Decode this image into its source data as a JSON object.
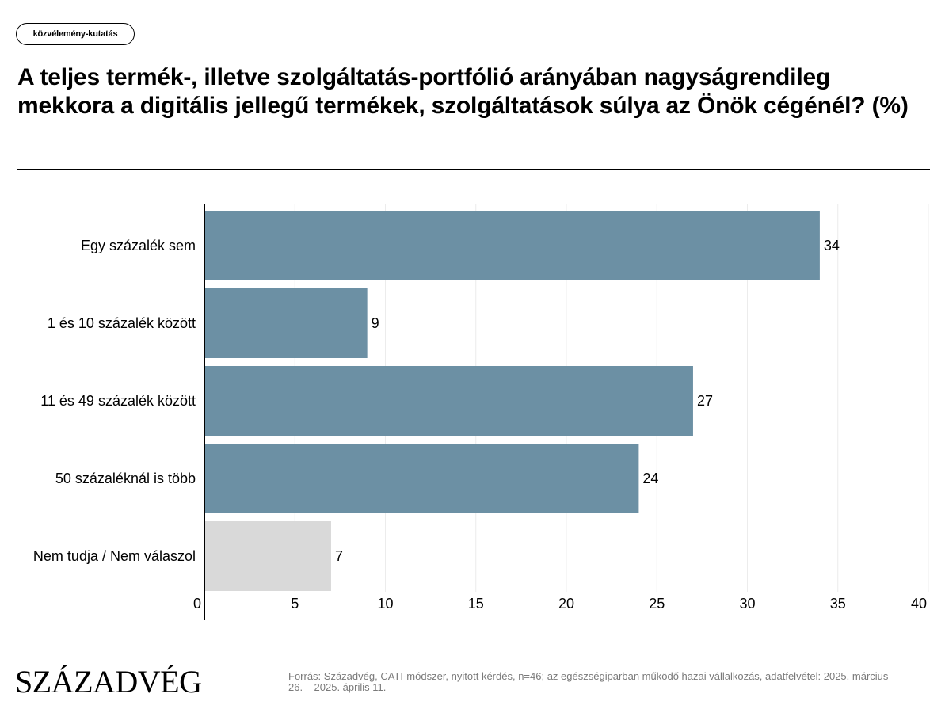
{
  "tag": "közvélemény-kutatás",
  "title": "A teljes termék-, illetve szolgáltatás-portfólió arányában nagyságrendileg mekkora a digitális jellegű termékek, szolgáltatások súlya az Önök cégénél? (%)",
  "logo": "Századvég",
  "source": "Forrás: Századvég, CATI-módszer, nyitott kérdés, n=46; az egészségiparban működő hazai vállalkozás, adatfelvétel: 2025. március 26. – 2025. április 11.",
  "colors": {
    "primary": "#6c90a4",
    "neutral": "#d9d9d9"
  },
  "chart_data": {
    "type": "bar",
    "orientation": "horizontal",
    "categories": [
      "Egy százalék sem",
      "1 és 10 százalék között",
      "11 és 49 százalék között",
      "50 százaléknál is több",
      "Nem tudja / Nem válaszol"
    ],
    "values": [
      34,
      9,
      27,
      24,
      7
    ],
    "bar_colors": [
      "#6c90a4",
      "#6c90a4",
      "#6c90a4",
      "#6c90a4",
      "#d9d9d9"
    ],
    "data_labels": [
      "34",
      "9",
      "27",
      "24",
      "7"
    ],
    "xlim": [
      0,
      40
    ],
    "x_ticks": [
      "0",
      "5",
      "10",
      "15",
      "20",
      "25",
      "30",
      "35",
      "40"
    ],
    "grid": true,
    "legend": "none"
  }
}
